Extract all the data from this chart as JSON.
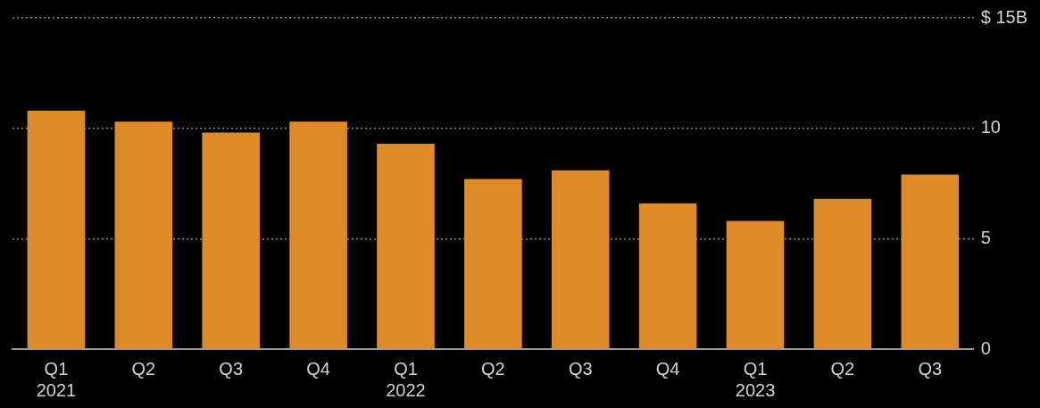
{
  "chart_data": {
    "type": "bar",
    "categories": [
      "Q1\n2021",
      "Q2",
      "Q3",
      "Q4",
      "Q1\n2022",
      "Q2",
      "Q3",
      "Q4",
      "Q1\n2023",
      "Q2",
      "Q3"
    ],
    "values": [
      10.8,
      10.3,
      9.8,
      10.3,
      9.3,
      7.7,
      8.1,
      6.6,
      5.8,
      6.8,
      7.9
    ],
    "color": "#de8b27",
    "ylim": [
      0,
      15
    ],
    "yticks": [
      0,
      5,
      10,
      {
        "value": 15,
        "label": "$ 15B"
      }
    ],
    "grid": "y"
  }
}
